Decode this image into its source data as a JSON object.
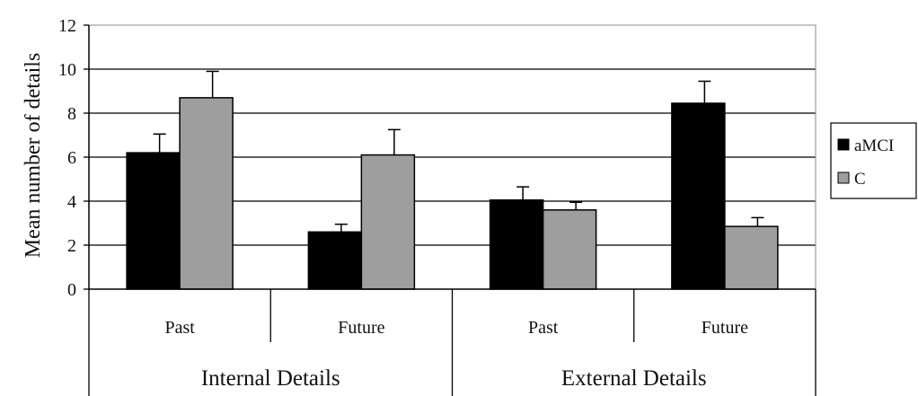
{
  "chart_data": {
    "type": "bar",
    "title": "",
    "ylabel": "Mean number of details",
    "ylim": [
      0,
      12
    ],
    "yticks": [
      0,
      2,
      4,
      6,
      8,
      10,
      12
    ],
    "grid": true,
    "legend_position": "right",
    "groups": [
      {
        "label": "Internal Details",
        "categories": [
          "Past",
          "Future"
        ]
      },
      {
        "label": "External Details",
        "categories": [
          "Past",
          "Future"
        ]
      }
    ],
    "categories": [
      "Internal Details - Past",
      "Internal Details - Future",
      "External Details - Past",
      "External Details - Future"
    ],
    "series": [
      {
        "name": "aMCI",
        "color": "#000000",
        "values": [
          6.2,
          2.6,
          4.05,
          8.45
        ],
        "errors": [
          0.85,
          0.35,
          0.6,
          1.0
        ]
      },
      {
        "name": "C",
        "color": "#9e9e9e",
        "values": [
          8.7,
          6.1,
          3.6,
          2.85
        ],
        "errors": [
          1.2,
          1.15,
          0.35,
          0.4
        ]
      }
    ]
  }
}
